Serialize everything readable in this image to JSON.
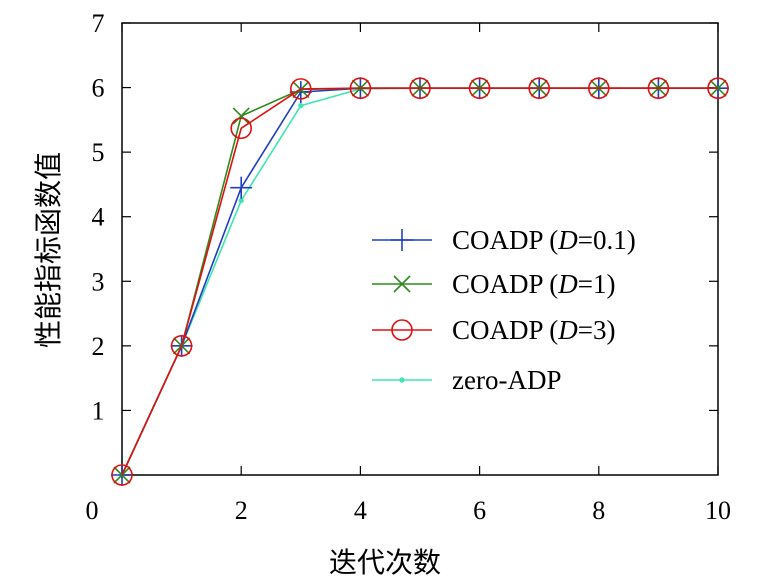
{
  "chart_data": {
    "type": "line",
    "title": "",
    "xlabel": "迭代次数",
    "ylabel": "性能指标函数值",
    "xlim": [
      0,
      10
    ],
    "ylim": [
      0,
      7
    ],
    "xticks": [
      0,
      2,
      4,
      6,
      8,
      10
    ],
    "yticks": [
      1,
      2,
      3,
      4,
      5,
      6,
      7
    ],
    "grid": false,
    "legend_position": "center-right",
    "x": [
      0,
      1,
      2,
      3,
      4,
      5,
      6,
      7,
      8,
      9,
      10
    ],
    "series": [
      {
        "name": "COADP (D=0.1)",
        "label_prefix": "COADP (",
        "label_italic": "D",
        "label_suffix": "=0.1)",
        "color": "#1f3fbf",
        "marker": "plus",
        "values": [
          0,
          2,
          4.45,
          5.93,
          5.99,
          5.99,
          5.99,
          5.99,
          5.99,
          5.99,
          5.99
        ]
      },
      {
        "name": "COADP (D=1)",
        "label_prefix": "COADP (",
        "label_italic": "D",
        "label_suffix": "=1)",
        "color": "#2e8b1e",
        "marker": "x",
        "values": [
          0,
          2,
          5.56,
          5.97,
          5.99,
          5.99,
          5.99,
          5.99,
          5.99,
          5.99,
          5.99
        ]
      },
      {
        "name": "COADP (D=3)",
        "label_prefix": "COADP (",
        "label_italic": "D",
        "label_suffix": "=3)",
        "color": "#e01010",
        "marker": "circle",
        "values": [
          0,
          2,
          5.37,
          5.98,
          5.99,
          5.99,
          5.99,
          5.99,
          5.99,
          5.99,
          5.99
        ]
      },
      {
        "name": "zero-ADP",
        "label_prefix": "zero-ADP",
        "label_italic": "",
        "label_suffix": "",
        "color": "#3ee6b0",
        "marker": "dot",
        "values": [
          0,
          2,
          4.25,
          5.72,
          5.98,
          5.99,
          5.99,
          5.99,
          5.99,
          5.99,
          5.99
        ]
      }
    ]
  }
}
